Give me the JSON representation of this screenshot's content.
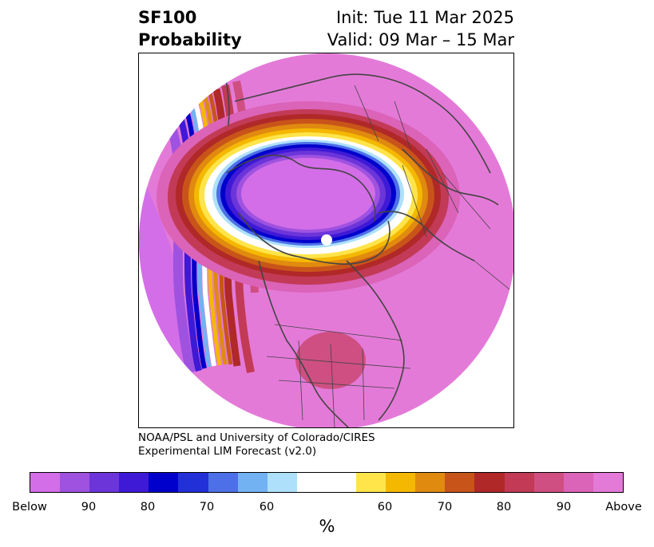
{
  "header": {
    "variable": "SF100",
    "product": "Probability",
    "init": "Init: Tue 11 Mar 2025",
    "valid": "Valid: 09 Mar – 15 Mar"
  },
  "credit": {
    "line1": "NOAA/PSL and University of Colorado/CIRES",
    "line2": "Experimental LIM Forecast (v2.0)"
  },
  "colorbar": {
    "unit": "%",
    "colors": [
      "#d36ee8",
      "#9f52e0",
      "#6b35d9",
      "#3f1ad6",
      "#0000cc",
      "#2230d8",
      "#4d70e8",
      "#73b2f2",
      "#aee0fb",
      "#ffffff",
      "#ffffff",
      "#ffe44a",
      "#f5b800",
      "#e08a10",
      "#c8541a",
      "#b02828",
      "#c23a55",
      "#cf4f82",
      "#db63b8",
      "#e47ad8"
    ],
    "tick_labels": [
      "Below",
      "90",
      "80",
      "70",
      "60",
      "60",
      "70",
      "80",
      "90",
      "Above"
    ]
  },
  "map": {
    "projection": "north-polar-stereographic",
    "dominant_color": "#e47ad8"
  }
}
